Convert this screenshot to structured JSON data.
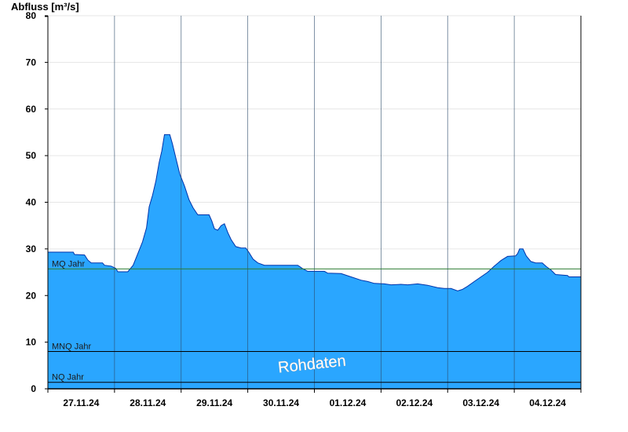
{
  "chart_data": {
    "type": "area",
    "ylabel": "Abfluss [m³/s]",
    "ylim": [
      0,
      80
    ],
    "yticks": [
      0,
      10,
      20,
      30,
      40,
      50,
      60,
      70,
      80
    ],
    "x_range_days": [
      0,
      8
    ],
    "date_ticks": [
      {
        "label": "27.11.24",
        "day": 0.5
      },
      {
        "label": "28.11.24",
        "day": 1.5
      },
      {
        "label": "29.11.24",
        "day": 2.5
      },
      {
        "label": "30.11.24",
        "day": 3.5
      },
      {
        "label": "01.12.24",
        "day": 4.5
      },
      {
        "label": "02.12.24",
        "day": 5.5
      },
      {
        "label": "03.12.24",
        "day": 6.5
      },
      {
        "label": "04.12.24",
        "day": 7.5
      }
    ],
    "reference_lines": [
      {
        "label": "MQ Jahr",
        "value": 25.7,
        "color": "#2e7d32"
      },
      {
        "label": "MNQ Jahr",
        "value": 8.0,
        "color": "#000000"
      },
      {
        "label": "NQ Jahr",
        "value": 1.4,
        "color": "#000000"
      }
    ],
    "series": [
      {
        "fill_color": "#2aa6ff",
        "line_color": "#0033aa",
        "points": [
          [
            0.0,
            29.3
          ],
          [
            0.38,
            29.3
          ],
          [
            0.4,
            28.8
          ],
          [
            0.55,
            28.7
          ],
          [
            0.6,
            27.6
          ],
          [
            0.65,
            27.0
          ],
          [
            0.82,
            27.0
          ],
          [
            0.85,
            26.5
          ],
          [
            0.95,
            26.3
          ],
          [
            1.02,
            25.8
          ],
          [
            1.05,
            25.1
          ],
          [
            1.2,
            25.1
          ],
          [
            1.28,
            26.5
          ],
          [
            1.35,
            29.0
          ],
          [
            1.42,
            31.5
          ],
          [
            1.48,
            34.5
          ],
          [
            1.52,
            39.0
          ],
          [
            1.57,
            41.5
          ],
          [
            1.62,
            44.5
          ],
          [
            1.67,
            48.5
          ],
          [
            1.71,
            51.0
          ],
          [
            1.75,
            54.5
          ],
          [
            1.83,
            54.5
          ],
          [
            1.87,
            52.5
          ],
          [
            1.92,
            49.5
          ],
          [
            1.98,
            46.0
          ],
          [
            2.05,
            43.5
          ],
          [
            2.12,
            40.5
          ],
          [
            2.18,
            38.8
          ],
          [
            2.25,
            37.3
          ],
          [
            2.42,
            37.3
          ],
          [
            2.46,
            36.0
          ],
          [
            2.5,
            34.3
          ],
          [
            2.55,
            34.0
          ],
          [
            2.6,
            35.0
          ],
          [
            2.65,
            35.4
          ],
          [
            2.7,
            33.5
          ],
          [
            2.75,
            32.0
          ],
          [
            2.82,
            30.5
          ],
          [
            2.9,
            30.2
          ],
          [
            2.97,
            30.2
          ],
          [
            3.02,
            29.2
          ],
          [
            3.08,
            27.8
          ],
          [
            3.15,
            27.0
          ],
          [
            3.25,
            26.5
          ],
          [
            3.75,
            26.5
          ],
          [
            3.82,
            25.8
          ],
          [
            3.9,
            25.2
          ],
          [
            4.15,
            25.2
          ],
          [
            4.2,
            24.8
          ],
          [
            4.4,
            24.7
          ],
          [
            4.55,
            24.0
          ],
          [
            4.7,
            23.3
          ],
          [
            4.8,
            23.0
          ],
          [
            4.9,
            22.6
          ],
          [
            5.05,
            22.5
          ],
          [
            5.15,
            22.3
          ],
          [
            5.3,
            22.4
          ],
          [
            5.4,
            22.3
          ],
          [
            5.55,
            22.5
          ],
          [
            5.7,
            22.2
          ],
          [
            5.85,
            21.7
          ],
          [
            5.95,
            21.5
          ],
          [
            6.05,
            21.5
          ],
          [
            6.15,
            21.0
          ],
          [
            6.22,
            21.3
          ],
          [
            6.3,
            22.0
          ],
          [
            6.4,
            23.0
          ],
          [
            6.5,
            24.0
          ],
          [
            6.6,
            25.0
          ],
          [
            6.7,
            26.3
          ],
          [
            6.8,
            27.5
          ],
          [
            6.9,
            28.4
          ],
          [
            7.02,
            28.5
          ],
          [
            7.05,
            29.0
          ],
          [
            7.08,
            30.0
          ],
          [
            7.13,
            30.0
          ],
          [
            7.18,
            28.5
          ],
          [
            7.25,
            27.3
          ],
          [
            7.32,
            27.0
          ],
          [
            7.42,
            27.0
          ],
          [
            7.48,
            26.2
          ],
          [
            7.55,
            25.5
          ],
          [
            7.62,
            24.5
          ],
          [
            7.8,
            24.3
          ],
          [
            7.82,
            24.0
          ],
          [
            8.0,
            24.0
          ]
        ]
      }
    ],
    "annotations": [
      {
        "text": "Rohdaten"
      }
    ]
  }
}
